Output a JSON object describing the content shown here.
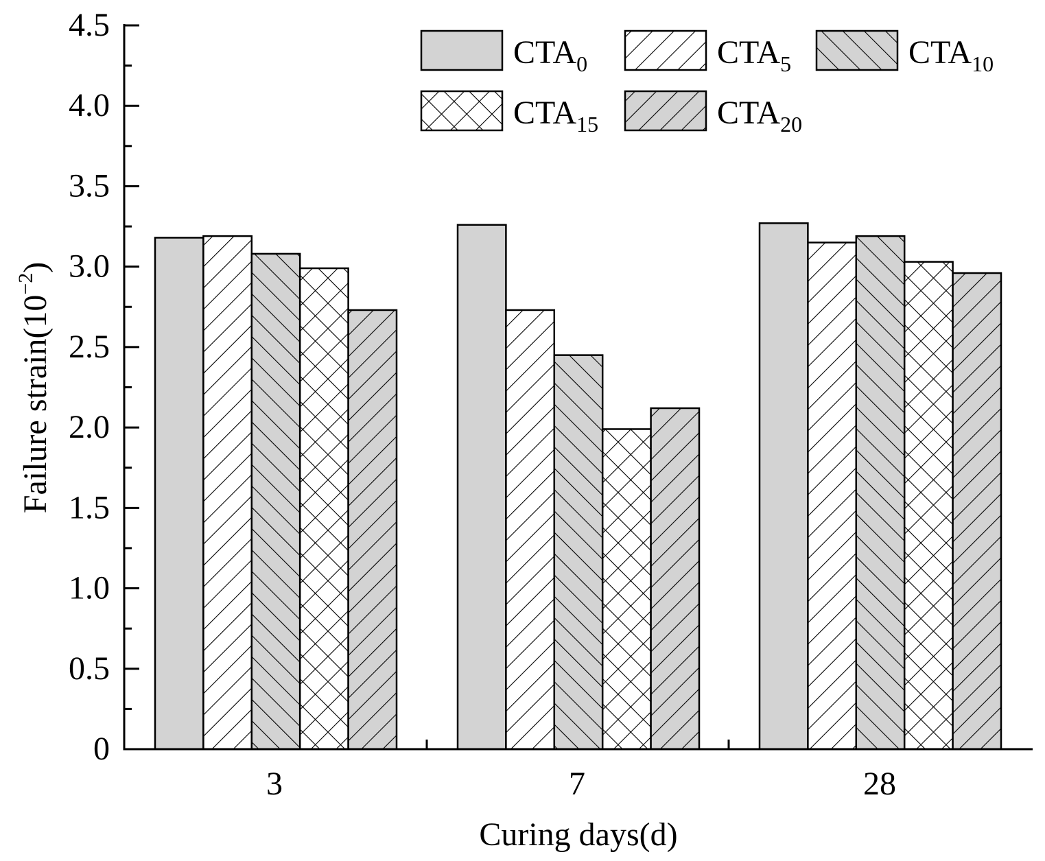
{
  "chart_data": {
    "type": "bar",
    "title": "",
    "xlabel": "Curing days(d)",
    "ylabel": {
      "base": "Failure strain(10",
      "sup": "−2",
      "close": ")"
    },
    "ylim": [
      0,
      4.5
    ],
    "yticks": [
      {
        "value": 0,
        "label": "0"
      },
      {
        "value": 0.5,
        "label": "0.5"
      },
      {
        "value": 1.0,
        "label": "1.0"
      },
      {
        "value": 1.5,
        "label": "1.5"
      },
      {
        "value": 2.0,
        "label": "2.0"
      },
      {
        "value": 2.5,
        "label": "2.5"
      },
      {
        "value": 3.0,
        "label": "3.0"
      },
      {
        "value": 3.5,
        "label": "3.5"
      },
      {
        "value": 4.0,
        "label": "4.0"
      },
      {
        "value": 4.5,
        "label": "4.5"
      }
    ],
    "categories": [
      "3",
      "7",
      "28"
    ],
    "series": [
      {
        "name": "CTA",
        "sub": "0",
        "pattern": "solid",
        "values": [
          3.18,
          3.26,
          3.27
        ]
      },
      {
        "name": "CTA",
        "sub": "5",
        "pattern": "fwd",
        "values": [
          3.19,
          2.73,
          3.15
        ]
      },
      {
        "name": "CTA",
        "sub": "10",
        "pattern": "back-gray",
        "values": [
          3.08,
          2.45,
          3.19
        ]
      },
      {
        "name": "CTA",
        "sub": "15",
        "pattern": "cross",
        "values": [
          2.99,
          1.99,
          3.03
        ]
      },
      {
        "name": "CTA",
        "sub": "20",
        "pattern": "fwd-gray",
        "values": [
          2.73,
          2.12,
          2.96
        ]
      }
    ],
    "legend_position": "top-right",
    "colors": {
      "fill": "#d3d3d3",
      "stroke": "#000000",
      "background": "#ffffff"
    }
  }
}
